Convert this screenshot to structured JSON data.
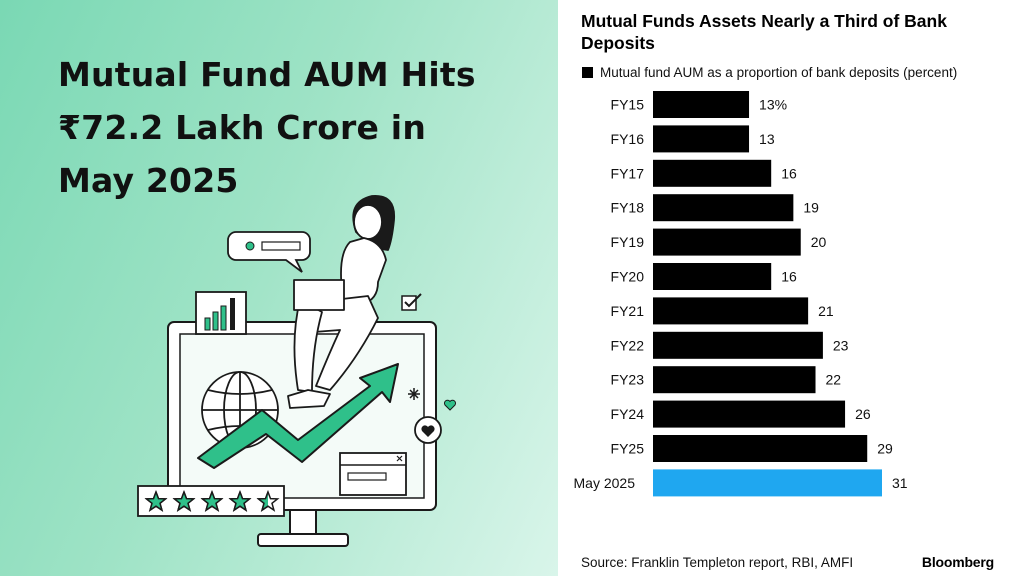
{
  "headline": {
    "line1": "Mutual Fund AUM Hits",
    "line2": "₹72.2 Lakh Crore in",
    "line3": "May 2025"
  },
  "illustration": {
    "rating_stars": 4.5,
    "icons": [
      "person-laptop-icon",
      "globe-icon",
      "trend-arrow-icon",
      "bar-chart-icon",
      "heart-icon",
      "checkmark-icon",
      "chat-bubble-icon",
      "star-rating-icon",
      "monitor-icon"
    ]
  },
  "chart_data": {
    "type": "bar",
    "orientation": "horizontal",
    "title": "Mutual Funds Assets Nearly a Third of Bank Deposits",
    "legend": "Mutual fund AUM as a proportion of bank deposits (percent)",
    "categories": [
      "FY15",
      "FY16",
      "FY17",
      "FY18",
      "FY19",
      "FY20",
      "FY21",
      "FY22",
      "FY23",
      "FY24",
      "FY25",
      "May 2025"
    ],
    "values": [
      13,
      13,
      16,
      19,
      20,
      16,
      21,
      23,
      22,
      26,
      29,
      31
    ],
    "value_labels": [
      "13%",
      "13",
      "16",
      "19",
      "20",
      "16",
      "21",
      "23",
      "22",
      "26",
      "29",
      "31"
    ],
    "highlight_category": "May 2025",
    "colors": {
      "default": "#000000",
      "highlight": "#1fa7f0"
    },
    "xlim": [
      0,
      31
    ],
    "grid": false
  },
  "source": "Source: Franklin Templeton report, RBI, AMFI",
  "brand": "Bloomberg"
}
